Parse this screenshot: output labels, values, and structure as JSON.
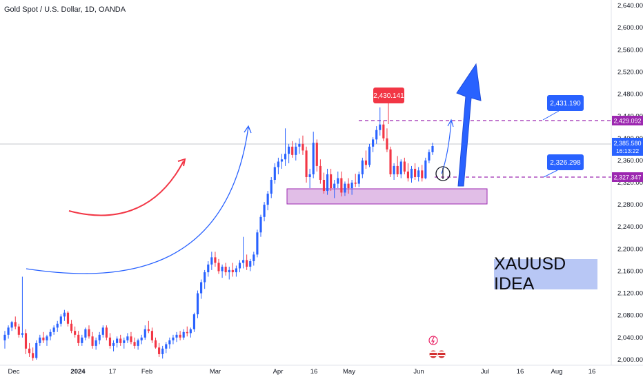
{
  "symbol_title": "Gold Spot / U.S. Dollar, 1D, OANDA",
  "idea_label": "XAUUSD IDEA",
  "chart_data": {
    "type": "candlestick",
    "title": "Gold Spot / U.S. Dollar, 1D, OANDA",
    "ylim": [
      1990,
      2650
    ],
    "yticks": [
      "2,000.000",
      "2,040.000",
      "2,080.000",
      "2,120.000",
      "2,160.000",
      "2,200.000",
      "2,240.000",
      "2,280.000",
      "2,320.000",
      "2,360.000",
      "2,400.000",
      "2,440.000",
      "2,480.000",
      "2,520.000",
      "2,560.000",
      "2,600.000",
      "2,640.000"
    ],
    "xticks": [
      "Dec",
      "2024",
      "17",
      "Feb",
      "Mar",
      "Apr",
      "16",
      "May",
      "Jun",
      "Jul",
      "16",
      "Aug",
      "16"
    ],
    "price_labels": {
      "current": "2,385.580",
      "countdown": "16:13:22",
      "high_level": "2,429.092",
      "low_level": "2,327.347"
    },
    "annotations": {
      "peak_label": "2,430.141",
      "target_label": "2,431.190",
      "support_label": "2,326.298"
    },
    "levels": {
      "current": 2385.58,
      "high_line": 2429.092,
      "low_line": 2327.347,
      "demand_zone": [
        2275,
        2303
      ]
    },
    "colors": {
      "up": "#2962ff",
      "down": "#f23645",
      "zone": "#e1bee7",
      "level": "#9c27b0",
      "label_blue": "#2962ff",
      "label_red": "#f23645"
    },
    "series": [
      {
        "o": 2035,
        "h": 2052,
        "l": 2020,
        "c": 2045
      },
      {
        "o": 2045,
        "h": 2062,
        "l": 2038,
        "c": 2058
      },
      {
        "o": 2058,
        "h": 2070,
        "l": 2052,
        "c": 2068
      },
      {
        "o": 2068,
        "h": 2078,
        "l": 2055,
        "c": 2060
      },
      {
        "o": 2060,
        "h": 2065,
        "l": 2040,
        "c": 2045
      },
      {
        "o": 2045,
        "h": 2150,
        "l": 2040,
        "c": 2048
      },
      {
        "o": 2048,
        "h": 2055,
        "l": 2010,
        "c": 2020
      },
      {
        "o": 2020,
        "h": 2030,
        "l": 2005,
        "c": 2012
      },
      {
        "o": 2012,
        "h": 2022,
        "l": 1998,
        "c": 2003
      },
      {
        "o": 2003,
        "h": 2035,
        "l": 2000,
        "c": 2030
      },
      {
        "o": 2030,
        "h": 2045,
        "l": 2025,
        "c": 2040
      },
      {
        "o": 2040,
        "h": 2050,
        "l": 2030,
        "c": 2035
      },
      {
        "o": 2035,
        "h": 2045,
        "l": 2025,
        "c": 2042
      },
      {
        "o": 2042,
        "h": 2055,
        "l": 2035,
        "c": 2050
      },
      {
        "o": 2050,
        "h": 2062,
        "l": 2045,
        "c": 2058
      },
      {
        "o": 2058,
        "h": 2070,
        "l": 2050,
        "c": 2065
      },
      {
        "o": 2065,
        "h": 2082,
        "l": 2060,
        "c": 2078
      },
      {
        "o": 2078,
        "h": 2090,
        "l": 2070,
        "c": 2085
      },
      {
        "o": 2085,
        "h": 2088,
        "l": 2060,
        "c": 2065
      },
      {
        "o": 2065,
        "h": 2072,
        "l": 2048,
        "c": 2052
      },
      {
        "o": 2052,
        "h": 2060,
        "l": 2040,
        "c": 2045
      },
      {
        "o": 2045,
        "h": 2052,
        "l": 2025,
        "c": 2030
      },
      {
        "o": 2030,
        "h": 2045,
        "l": 2025,
        "c": 2040
      },
      {
        "o": 2040,
        "h": 2058,
        "l": 2035,
        "c": 2055
      },
      {
        "o": 2055,
        "h": 2062,
        "l": 2038,
        "c": 2042
      },
      {
        "o": 2042,
        "h": 2050,
        "l": 2020,
        "c": 2025
      },
      {
        "o": 2025,
        "h": 2040,
        "l": 2018,
        "c": 2035
      },
      {
        "o": 2035,
        "h": 2050,
        "l": 2028,
        "c": 2045
      },
      {
        "o": 2045,
        "h": 2062,
        "l": 2040,
        "c": 2058
      },
      {
        "o": 2058,
        "h": 2062,
        "l": 2035,
        "c": 2040
      },
      {
        "o": 2040,
        "h": 2048,
        "l": 2020,
        "c": 2025
      },
      {
        "o": 2025,
        "h": 2035,
        "l": 2015,
        "c": 2030
      },
      {
        "o": 2030,
        "h": 2042,
        "l": 2022,
        "c": 2038
      },
      {
        "o": 2038,
        "h": 2045,
        "l": 2025,
        "c": 2030
      },
      {
        "o": 2030,
        "h": 2040,
        "l": 2020,
        "c": 2035
      },
      {
        "o": 2035,
        "h": 2048,
        "l": 2030,
        "c": 2042
      },
      {
        "o": 2042,
        "h": 2050,
        "l": 2028,
        "c": 2032
      },
      {
        "o": 2032,
        "h": 2040,
        "l": 2020,
        "c": 2025
      },
      {
        "o": 2025,
        "h": 2038,
        "l": 2018,
        "c": 2035
      },
      {
        "o": 2035,
        "h": 2045,
        "l": 2028,
        "c": 2040
      },
      {
        "o": 2040,
        "h": 2062,
        "l": 2036,
        "c": 2055
      },
      {
        "o": 2055,
        "h": 2070,
        "l": 2048,
        "c": 2052
      },
      {
        "o": 2052,
        "h": 2058,
        "l": 2030,
        "c": 2035
      },
      {
        "o": 2035,
        "h": 2040,
        "l": 2020,
        "c": 2022
      },
      {
        "o": 2022,
        "h": 2030,
        "l": 2005,
        "c": 2010
      },
      {
        "o": 2010,
        "h": 2025,
        "l": 2002,
        "c": 2020
      },
      {
        "o": 2020,
        "h": 2032,
        "l": 2012,
        "c": 2028
      },
      {
        "o": 2028,
        "h": 2040,
        "l": 2020,
        "c": 2035
      },
      {
        "o": 2035,
        "h": 2045,
        "l": 2028,
        "c": 2040
      },
      {
        "o": 2040,
        "h": 2050,
        "l": 2032,
        "c": 2045
      },
      {
        "o": 2045,
        "h": 2052,
        "l": 2035,
        "c": 2040
      },
      {
        "o": 2040,
        "h": 2055,
        "l": 2036,
        "c": 2050
      },
      {
        "o": 2050,
        "h": 2060,
        "l": 2042,
        "c": 2048
      },
      {
        "o": 2048,
        "h": 2058,
        "l": 2040,
        "c": 2055
      },
      {
        "o": 2055,
        "h": 2085,
        "l": 2050,
        "c": 2082
      },
      {
        "o": 2082,
        "h": 2125,
        "l": 2075,
        "c": 2120
      },
      {
        "o": 2120,
        "h": 2145,
        "l": 2110,
        "c": 2140
      },
      {
        "o": 2140,
        "h": 2162,
        "l": 2128,
        "c": 2158
      },
      {
        "o": 2158,
        "h": 2178,
        "l": 2150,
        "c": 2172
      },
      {
        "o": 2172,
        "h": 2195,
        "l": 2162,
        "c": 2185
      },
      {
        "o": 2185,
        "h": 2195,
        "l": 2168,
        "c": 2175
      },
      {
        "o": 2175,
        "h": 2182,
        "l": 2155,
        "c": 2160
      },
      {
        "o": 2160,
        "h": 2172,
        "l": 2148,
        "c": 2168
      },
      {
        "o": 2168,
        "h": 2175,
        "l": 2152,
        "c": 2158
      },
      {
        "o": 2158,
        "h": 2168,
        "l": 2145,
        "c": 2162
      },
      {
        "o": 2162,
        "h": 2175,
        "l": 2150,
        "c": 2158
      },
      {
        "o": 2158,
        "h": 2170,
        "l": 2150,
        "c": 2165
      },
      {
        "o": 2165,
        "h": 2180,
        "l": 2158,
        "c": 2175
      },
      {
        "o": 2175,
        "h": 2222,
        "l": 2165,
        "c": 2180
      },
      {
        "o": 2180,
        "h": 2190,
        "l": 2162,
        "c": 2168
      },
      {
        "o": 2168,
        "h": 2182,
        "l": 2160,
        "c": 2178
      },
      {
        "o": 2178,
        "h": 2195,
        "l": 2170,
        "c": 2190
      },
      {
        "o": 2190,
        "h": 2235,
        "l": 2185,
        "c": 2230
      },
      {
        "o": 2230,
        "h": 2262,
        "l": 2222,
        "c": 2258
      },
      {
        "o": 2258,
        "h": 2285,
        "l": 2250,
        "c": 2280
      },
      {
        "o": 2280,
        "h": 2305,
        "l": 2270,
        "c": 2300
      },
      {
        "o": 2300,
        "h": 2330,
        "l": 2292,
        "c": 2325
      },
      {
        "o": 2325,
        "h": 2355,
        "l": 2318,
        "c": 2348
      },
      {
        "o": 2348,
        "h": 2365,
        "l": 2335,
        "c": 2358
      },
      {
        "o": 2358,
        "h": 2372,
        "l": 2345,
        "c": 2362
      },
      {
        "o": 2362,
        "h": 2418,
        "l": 2350,
        "c": 2372
      },
      {
        "o": 2372,
        "h": 2390,
        "l": 2355,
        "c": 2385
      },
      {
        "o": 2385,
        "h": 2395,
        "l": 2365,
        "c": 2370
      },
      {
        "o": 2370,
        "h": 2392,
        "l": 2360,
        "c": 2385
      },
      {
        "o": 2385,
        "h": 2400,
        "l": 2372,
        "c": 2390
      },
      {
        "o": 2390,
        "h": 2405,
        "l": 2370,
        "c": 2378
      },
      {
        "o": 2378,
        "h": 2385,
        "l": 2320,
        "c": 2330
      },
      {
        "o": 2330,
        "h": 2345,
        "l": 2310,
        "c": 2335
      },
      {
        "o": 2335,
        "h": 2412,
        "l": 2328,
        "c": 2392
      },
      {
        "o": 2392,
        "h": 2398,
        "l": 2340,
        "c": 2350
      },
      {
        "o": 2350,
        "h": 2362,
        "l": 2318,
        "c": 2325
      },
      {
        "o": 2325,
        "h": 2338,
        "l": 2300,
        "c": 2305
      },
      {
        "o": 2305,
        "h": 2345,
        "l": 2298,
        "c": 2335
      },
      {
        "o": 2335,
        "h": 2345,
        "l": 2305,
        "c": 2310
      },
      {
        "o": 2310,
        "h": 2325,
        "l": 2292,
        "c": 2318
      },
      {
        "o": 2318,
        "h": 2340,
        "l": 2310,
        "c": 2328
      },
      {
        "o": 2328,
        "h": 2340,
        "l": 2295,
        "c": 2302
      },
      {
        "o": 2302,
        "h": 2322,
        "l": 2296,
        "c": 2318
      },
      {
        "o": 2318,
        "h": 2328,
        "l": 2300,
        "c": 2310
      },
      {
        "o": 2310,
        "h": 2325,
        "l": 2298,
        "c": 2320
      },
      {
        "o": 2320,
        "h": 2336,
        "l": 2312,
        "c": 2318
      },
      {
        "o": 2318,
        "h": 2340,
        "l": 2312,
        "c": 2335
      },
      {
        "o": 2335,
        "h": 2365,
        "l": 2328,
        "c": 2360
      },
      {
        "o": 2360,
        "h": 2378,
        "l": 2345,
        "c": 2352
      },
      {
        "o": 2352,
        "h": 2390,
        "l": 2348,
        "c": 2385
      },
      {
        "o": 2385,
        "h": 2402,
        "l": 2375,
        "c": 2398
      },
      {
        "o": 2398,
        "h": 2422,
        "l": 2390,
        "c": 2415
      },
      {
        "o": 2415,
        "h": 2456,
        "l": 2405,
        "c": 2425
      },
      {
        "o": 2425,
        "h": 2432,
        "l": 2395,
        "c": 2400
      },
      {
        "o": 2400,
        "h": 2418,
        "l": 2375,
        "c": 2380
      },
      {
        "o": 2380,
        "h": 2385,
        "l": 2330,
        "c": 2335
      },
      {
        "o": 2335,
        "h": 2355,
        "l": 2325,
        "c": 2350
      },
      {
        "o": 2350,
        "h": 2368,
        "l": 2330,
        "c": 2335
      },
      {
        "o": 2335,
        "h": 2362,
        "l": 2328,
        "c": 2358
      },
      {
        "o": 2358,
        "h": 2365,
        "l": 2335,
        "c": 2340
      },
      {
        "o": 2340,
        "h": 2355,
        "l": 2322,
        "c": 2328
      },
      {
        "o": 2328,
        "h": 2350,
        "l": 2320,
        "c": 2345
      },
      {
        "o": 2345,
        "h": 2355,
        "l": 2325,
        "c": 2330
      },
      {
        "o": 2330,
        "h": 2348,
        "l": 2322,
        "c": 2342
      },
      {
        "o": 2342,
        "h": 2352,
        "l": 2322,
        "c": 2328
      },
      {
        "o": 2328,
        "h": 2365,
        "l": 2326,
        "c": 2360
      },
      {
        "o": 2360,
        "h": 2380,
        "l": 2355,
        "c": 2375
      },
      {
        "o": 2375,
        "h": 2392,
        "l": 2370,
        "c": 2386
      }
    ]
  }
}
